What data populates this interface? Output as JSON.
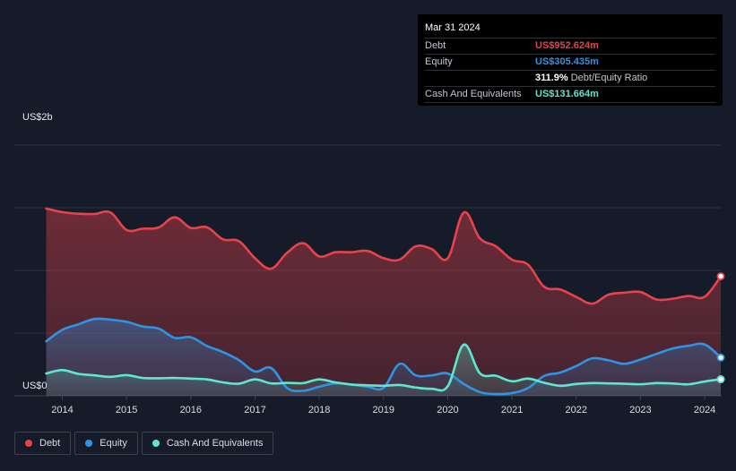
{
  "tooltip": {
    "date": "Mar 31 2024",
    "debt_label": "Debt",
    "debt_value": "US$952.624m",
    "equity_label": "Equity",
    "equity_value": "US$305.435m",
    "ratio_value": "311.9%",
    "ratio_label": "Debt/Equity Ratio",
    "cash_label": "Cash And Equivalents",
    "cash_value": "US$131.664m"
  },
  "legend": {
    "debt": "Debt",
    "equity": "Equity",
    "cash": "Cash And Equivalents"
  },
  "colors": {
    "debt": "#e8434c",
    "equity": "#2d94e6",
    "cash": "#5ee6cf",
    "background": "#151b28"
  },
  "chart_data": {
    "type": "area",
    "title": "",
    "xlabel": "",
    "ylabel": "",
    "y_top_label": "US$2b",
    "y_bottom_label": "US$0",
    "ylim": [
      0,
      2000
    ],
    "xlim": [
      2013.7,
      2024.25
    ],
    "x_ticks": [
      "2014",
      "2015",
      "2016",
      "2017",
      "2018",
      "2019",
      "2020",
      "2021",
      "2022",
      "2023",
      "2024"
    ],
    "gridlines_m": [
      500,
      1000,
      1500
    ],
    "series": [
      {
        "name": "Debt",
        "points": [
          [
            2013.75,
            1494
          ],
          [
            2014.0,
            1465
          ],
          [
            2014.25,
            1452
          ],
          [
            2014.5,
            1450
          ],
          [
            2014.75,
            1462
          ],
          [
            2015.0,
            1323
          ],
          [
            2015.25,
            1333
          ],
          [
            2015.5,
            1343
          ],
          [
            2015.75,
            1424
          ],
          [
            2016.0,
            1339
          ],
          [
            2016.25,
            1345
          ],
          [
            2016.5,
            1248
          ],
          [
            2016.75,
            1233
          ],
          [
            2017.0,
            1097
          ],
          [
            2017.25,
            1014
          ],
          [
            2017.5,
            1141
          ],
          [
            2017.75,
            1217
          ],
          [
            2018.0,
            1112
          ],
          [
            2018.25,
            1145
          ],
          [
            2018.5,
            1145
          ],
          [
            2018.75,
            1156
          ],
          [
            2019.0,
            1098
          ],
          [
            2019.25,
            1086
          ],
          [
            2019.5,
            1192
          ],
          [
            2019.75,
            1171
          ],
          [
            2020.0,
            1097
          ],
          [
            2020.25,
            1462
          ],
          [
            2020.5,
            1256
          ],
          [
            2020.75,
            1192
          ],
          [
            2021.0,
            1086
          ],
          [
            2021.25,
            1046
          ],
          [
            2021.5,
            870
          ],
          [
            2021.75,
            848
          ],
          [
            2022.0,
            789
          ],
          [
            2022.25,
            735
          ],
          [
            2022.5,
            806
          ],
          [
            2022.75,
            822
          ],
          [
            2023.0,
            828
          ],
          [
            2023.25,
            768
          ],
          [
            2023.5,
            774
          ],
          [
            2023.75,
            796
          ],
          [
            2024.0,
            790
          ],
          [
            2024.25,
            953
          ]
        ]
      },
      {
        "name": "Equity",
        "points": [
          [
            2013.75,
            435
          ],
          [
            2014.0,
            526
          ],
          [
            2014.25,
            570
          ],
          [
            2014.5,
            613
          ],
          [
            2014.75,
            607
          ],
          [
            2015.0,
            590
          ],
          [
            2015.25,
            553
          ],
          [
            2015.5,
            536
          ],
          [
            2015.75,
            462
          ],
          [
            2016.0,
            467
          ],
          [
            2016.25,
            398
          ],
          [
            2016.5,
            349
          ],
          [
            2016.75,
            284
          ],
          [
            2017.0,
            194
          ],
          [
            2017.25,
            222
          ],
          [
            2017.5,
            62
          ],
          [
            2017.75,
            40
          ],
          [
            2018.0,
            73
          ],
          [
            2018.25,
            99
          ],
          [
            2018.5,
            90
          ],
          [
            2018.75,
            73
          ],
          [
            2019.0,
            63
          ],
          [
            2019.25,
            254
          ],
          [
            2019.5,
            163
          ],
          [
            2019.75,
            163
          ],
          [
            2020.0,
            178
          ],
          [
            2020.25,
            94
          ],
          [
            2020.5,
            29
          ],
          [
            2020.75,
            14
          ],
          [
            2021.0,
            22
          ],
          [
            2021.25,
            62
          ],
          [
            2021.5,
            158
          ],
          [
            2021.75,
            185
          ],
          [
            2022.0,
            237
          ],
          [
            2022.25,
            299
          ],
          [
            2022.5,
            283
          ],
          [
            2022.75,
            255
          ],
          [
            2023.0,
            289
          ],
          [
            2023.25,
            334
          ],
          [
            2023.5,
            377
          ],
          [
            2023.75,
            399
          ],
          [
            2024.0,
            409
          ],
          [
            2024.25,
            305
          ]
        ]
      },
      {
        "name": "Cash And Equivalents",
        "points": [
          [
            2013.75,
            178
          ],
          [
            2014.0,
            205
          ],
          [
            2014.25,
            175
          ],
          [
            2014.5,
            163
          ],
          [
            2014.75,
            151
          ],
          [
            2015.0,
            165
          ],
          [
            2015.25,
            142
          ],
          [
            2015.5,
            140
          ],
          [
            2015.75,
            142
          ],
          [
            2016.0,
            137
          ],
          [
            2016.25,
            131
          ],
          [
            2016.5,
            107
          ],
          [
            2016.75,
            97
          ],
          [
            2017.0,
            131
          ],
          [
            2017.25,
            99
          ],
          [
            2017.5,
            103
          ],
          [
            2017.75,
            101
          ],
          [
            2018.0,
            131
          ],
          [
            2018.25,
            107
          ],
          [
            2018.5,
            90
          ],
          [
            2018.75,
            84
          ],
          [
            2019.0,
            80
          ],
          [
            2019.25,
            86
          ],
          [
            2019.5,
            66
          ],
          [
            2019.75,
            56
          ],
          [
            2020.0,
            76
          ],
          [
            2020.25,
            408
          ],
          [
            2020.5,
            180
          ],
          [
            2020.75,
            160
          ],
          [
            2021.0,
            116
          ],
          [
            2021.25,
            137
          ],
          [
            2021.5,
            104
          ],
          [
            2021.75,
            80
          ],
          [
            2022.0,
            94
          ],
          [
            2022.25,
            101
          ],
          [
            2022.5,
            99
          ],
          [
            2022.75,
            96
          ],
          [
            2023.0,
            92
          ],
          [
            2023.25,
            101
          ],
          [
            2023.5,
            98
          ],
          [
            2023.75,
            92
          ],
          [
            2024.0,
            114
          ],
          [
            2024.25,
            132
          ]
        ]
      }
    ]
  }
}
